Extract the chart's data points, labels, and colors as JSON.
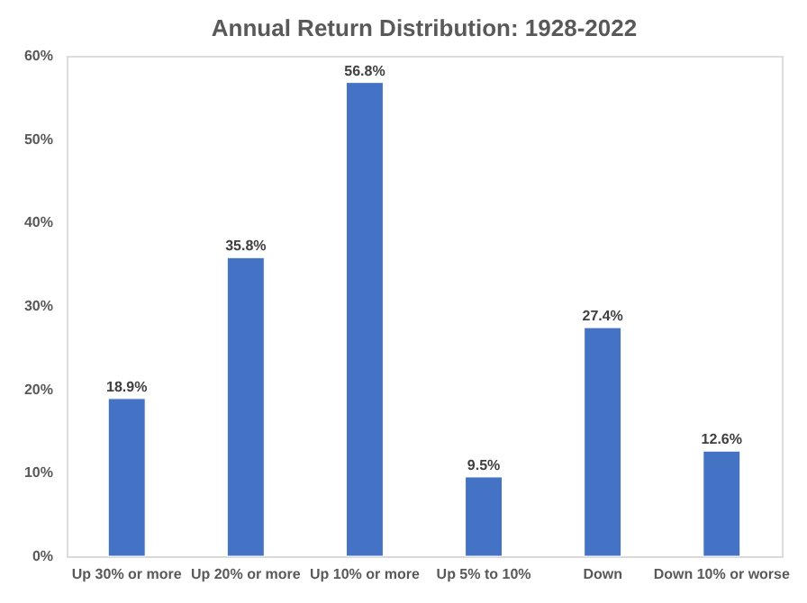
{
  "chart_data": {
    "type": "bar",
    "title": "Annual Return Distribution: 1928-2022",
    "categories": [
      "Up 30% or more",
      "Up 20% or more",
      "Up 10% or more",
      "Up 5% to 10%",
      "Down",
      "Down 10% or worse"
    ],
    "values": [
      18.9,
      35.8,
      56.8,
      9.5,
      27.4,
      12.6
    ],
    "value_labels": [
      "18.9%",
      "35.8%",
      "56.8%",
      "9.5%",
      "27.4%",
      "12.6%"
    ],
    "color": "#4472c4",
    "ylim": [
      0,
      60
    ],
    "yticks": [
      {
        "value": 0,
        "label": "0%"
      },
      {
        "value": 10,
        "label": "10%"
      },
      {
        "value": 20,
        "label": "20%"
      },
      {
        "value": 30,
        "label": "30%"
      },
      {
        "value": 40,
        "label": "40%"
      },
      {
        "value": 50,
        "label": "50%"
      },
      {
        "value": 60,
        "label": "60%"
      }
    ],
    "grid": false
  }
}
